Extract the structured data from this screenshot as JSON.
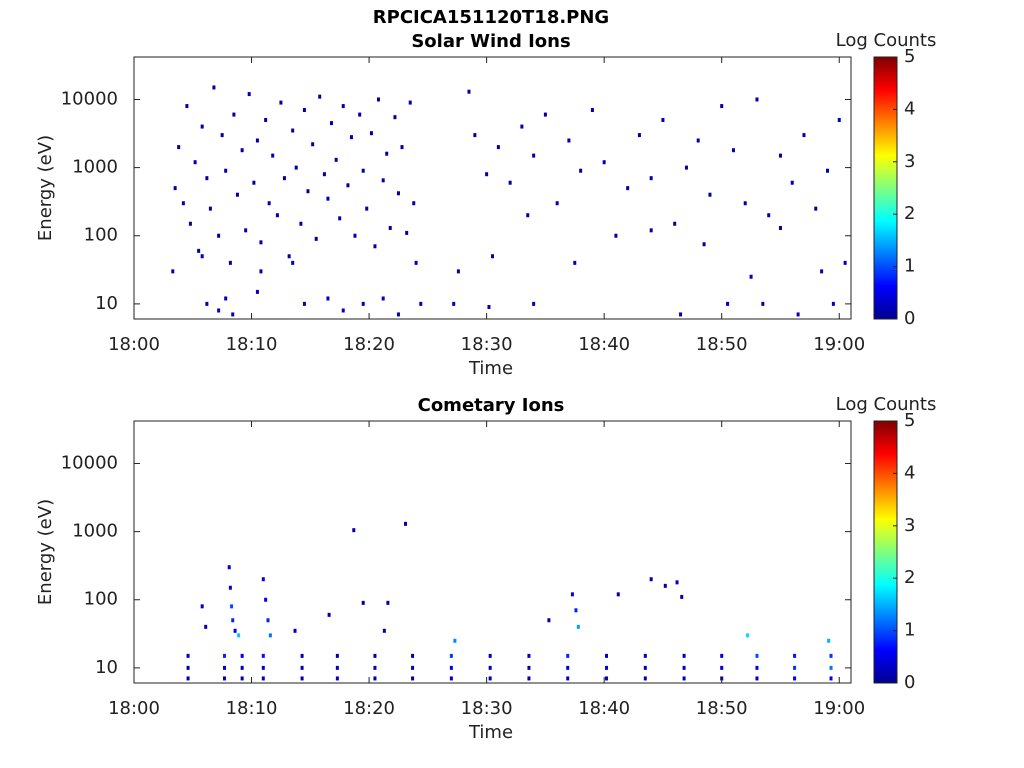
{
  "title": "RPCICA151120T18.PNG",
  "chart_data": [
    {
      "type": "heatmap",
      "title": "Solar Wind Ions",
      "xlabel": "Time",
      "ylabel": "Energy (eV)",
      "xlim": [
        0,
        61
      ],
      "xticks": [
        {
          "value": 0,
          "label": "18:00"
        },
        {
          "value": 10,
          "label": "18:10"
        },
        {
          "value": 20,
          "label": "18:20"
        },
        {
          "value": 30,
          "label": "18:30"
        },
        {
          "value": 40,
          "label": "18:40"
        },
        {
          "value": 50,
          "label": "18:50"
        },
        {
          "value": 60,
          "label": "19:00"
        }
      ],
      "ylim": [
        6,
        42000
      ],
      "yticks": [
        10,
        100,
        1000,
        10000
      ],
      "yscale": "log",
      "colorbar": {
        "label": "Log Counts",
        "lim": [
          0,
          5
        ],
        "ticks": [
          0,
          1,
          2,
          3,
          4,
          5
        ],
        "colormap": "jet"
      },
      "x": [
        3.5,
        3.8,
        4.2,
        4.5,
        4.8,
        5.2,
        5.5,
        5.8,
        6.2,
        6.5,
        6.8,
        7.2,
        7.5,
        7.8,
        8.2,
        8.5,
        8.8,
        9.2,
        9.5,
        9.8,
        10.2,
        10.5,
        10.8,
        11.2,
        11.5,
        11.8,
        12.2,
        12.5,
        12.8,
        13.2,
        13.5,
        13.8,
        14.2,
        14.5,
        14.8,
        15.2,
        15.5,
        15.8,
        16.2,
        16.5,
        16.8,
        17.2,
        17.5,
        17.8,
        18.2,
        18.5,
        18.8,
        19.2,
        19.5,
        19.8,
        20.2,
        20.5,
        20.8,
        21.2,
        21.5,
        21.8,
        22.2,
        22.5,
        22.8,
        23.2,
        23.5,
        23.8,
        3.3,
        5.8,
        6.2,
        7.2,
        7.8,
        8.4,
        10.5,
        10.8,
        13.5,
        14.5,
        16.5,
        17.8,
        19.5,
        21.2,
        22.5,
        24,
        24.4,
        27.2,
        27.6,
        30.2,
        34,
        37.5,
        46.5,
        50.5,
        52.5,
        53.5,
        56.5,
        58.5,
        59.5,
        60.5,
        28.5,
        29,
        30,
        31,
        32,
        33,
        34,
        35,
        36,
        37,
        38,
        39,
        40,
        41,
        42,
        43,
        44,
        45,
        46,
        47,
        48,
        49,
        50,
        51,
        52,
        53,
        54,
        55,
        56,
        57,
        58,
        59,
        60,
        30.5,
        33.5,
        44,
        48.5,
        55
      ],
      "y": [
        500,
        2000,
        300,
        8000,
        150,
        1200,
        60,
        4000,
        700,
        250,
        15000,
        100,
        3000,
        900,
        40,
        6000,
        400,
        1800,
        120,
        12000,
        600,
        2500,
        80,
        5000,
        300,
        1500,
        200,
        9000,
        700,
        50,
        3500,
        1000,
        150,
        7000,
        450,
        2200,
        90,
        11000,
        800,
        350,
        4500,
        1300,
        180,
        8000,
        550,
        2800,
        100,
        6000,
        900,
        250,
        3200,
        70,
        10000,
        650,
        1600,
        130,
        5500,
        420,
        2000,
        110,
        9000,
        300,
        30,
        50,
        10,
        8,
        12,
        7,
        15,
        30,
        40,
        10,
        12,
        8,
        10,
        12,
        7,
        40,
        10,
        10,
        30,
        9,
        10,
        40,
        7,
        10,
        25,
        10,
        7,
        30,
        10,
        40,
        13000,
        3000,
        800,
        2000,
        600,
        4000,
        1500,
        6000,
        300,
        2500,
        900,
        7000,
        1200,
        100,
        500,
        3000,
        700,
        5000,
        150,
        1000,
        2500,
        400,
        8000,
        1800,
        300,
        10000,
        200,
        1500,
        600,
        3000,
        250,
        900,
        5000,
        50,
        200,
        120,
        75,
        130
      ],
      "values": [
        0.2,
        0.2,
        0.2,
        0.2,
        0.2,
        0.2,
        0.2,
        0.2,
        0.2,
        0.2,
        0.2,
        0.2,
        0.2,
        0.2,
        0.2,
        0.2,
        0.2,
        0.2,
        0.2,
        0.2,
        0.2,
        0.2,
        0.2,
        0.2,
        0.2,
        0.2,
        0.2,
        0.2,
        0.2,
        0.2,
        0.2,
        0.2,
        0.2,
        0.2,
        0.2,
        0.2,
        0.2,
        0.2,
        0.2,
        0.2,
        0.2,
        0.2,
        0.2,
        0.2,
        0.2,
        0.2,
        0.2,
        0.2,
        0.2,
        0.2,
        0.2,
        0.2,
        0.2,
        0.2,
        0.2,
        0.2,
        0.2,
        0.2,
        0.2,
        0.2,
        0.2,
        0.2,
        0.3,
        0.3,
        0.3,
        0.3,
        0.3,
        0.3,
        0.3,
        0.3,
        0.3,
        0.3,
        0.3,
        0.3,
        0.3,
        0.3,
        0.3,
        0.3,
        0.3,
        0.3,
        0.3,
        0.3,
        0.3,
        0.3,
        0.3,
        0.3,
        0.3,
        0.3,
        0.3,
        0.3,
        0.3,
        0.3,
        0.2,
        0.2,
        0.2,
        0.2,
        0.2,
        0.2,
        0.2,
        0.2,
        0.2,
        0.2,
        0.2,
        0.2,
        0.2,
        0.2,
        0.2,
        0.2,
        0.2,
        0.2,
        0.2,
        0.2,
        0.2,
        0.2,
        0.2,
        0.2,
        0.2,
        0.2,
        0.2,
        0.2,
        0.2,
        0.2,
        0.2,
        0.2,
        0.2,
        0.2,
        0.2,
        0.2,
        0.2,
        0.2
      ]
    },
    {
      "type": "heatmap",
      "title": "Cometary Ions",
      "xlabel": "Time",
      "ylabel": "Energy (eV)",
      "xlim": [
        0,
        61
      ],
      "xticks": [
        {
          "value": 0,
          "label": "18:00"
        },
        {
          "value": 10,
          "label": "18:10"
        },
        {
          "value": 20,
          "label": "18:20"
        },
        {
          "value": 30,
          "label": "18:30"
        },
        {
          "value": 40,
          "label": "18:40"
        },
        {
          "value": 50,
          "label": "18:50"
        },
        {
          "value": 60,
          "label": "19:00"
        }
      ],
      "ylim": [
        6,
        42000
      ],
      "yticks": [
        10,
        100,
        1000,
        10000
      ],
      "yscale": "log",
      "colorbar": {
        "label": "Log Counts",
        "lim": [
          0,
          5
        ],
        "ticks": [
          0,
          1,
          2,
          3,
          4,
          5
        ],
        "colormap": "jet"
      },
      "x": [
        4.6,
        4.6,
        4.6,
        7.7,
        7.7,
        7.7,
        9.2,
        9.2,
        9.2,
        11,
        11,
        11,
        14.3,
        14.3,
        14.3,
        17.3,
        17.3,
        17.3,
        20.5,
        20.5,
        20.5,
        23.7,
        23.7,
        23.7,
        27,
        27,
        27,
        30.3,
        30.3,
        30.3,
        33.6,
        33.6,
        33.6,
        36.9,
        36.9,
        36.9,
        40.2,
        40.2,
        40.2,
        43.5,
        43.5,
        43.5,
        46.8,
        46.8,
        46.8,
        50,
        50,
        50,
        53,
        53,
        53,
        56.2,
        56.2,
        56.2,
        59.3,
        59.3,
        59.3,
        8.1,
        8.2,
        8.3,
        8.4,
        8.6,
        11,
        11.2,
        11.4,
        11.6,
        37.3,
        37.6,
        37.8,
        5.8,
        6.1,
        13.7,
        16.6,
        18.7,
        19.5,
        21.3,
        21.6,
        23.1,
        35.3,
        41.2,
        44,
        45.2,
        46.2,
        46.6,
        52.2,
        59.1,
        27.3,
        8.9
      ],
      "y": [
        7,
        10,
        15,
        7,
        10,
        15,
        7,
        10,
        15,
        7,
        10,
        15,
        7,
        10,
        15,
        7,
        10,
        15,
        7,
        10,
        15,
        7,
        10,
        15,
        7,
        10,
        15,
        7,
        10,
        15,
        7,
        10,
        15,
        7,
        10,
        15,
        7,
        10,
        15,
        7,
        10,
        15,
        7,
        10,
        15,
        7,
        10,
        15,
        7,
        10,
        15,
        7,
        10,
        15,
        7,
        10,
        15,
        300,
        150,
        80,
        50,
        35,
        200,
        100,
        50,
        30,
        120,
        70,
        40,
        80,
        40,
        35,
        60,
        1050,
        90,
        35,
        90,
        1300,
        50,
        120,
        200,
        160,
        180,
        110,
        30,
        25,
        25,
        30
      ],
      "values": [
        0.2,
        0.2,
        0.3,
        0.3,
        0.5,
        0.8,
        0.2,
        0.3,
        0.6,
        0.3,
        0.4,
        0.7,
        0.2,
        0.3,
        0.3,
        0.3,
        0.3,
        0.2,
        0.2,
        0.3,
        0.2,
        0.2,
        0.3,
        0.2,
        0.3,
        0.6,
        0.9,
        0.2,
        0.3,
        0.3,
        0.2,
        0.2,
        0.3,
        0.3,
        0.5,
        0.8,
        0.3,
        0.6,
        0.4,
        0.2,
        0.3,
        0.3,
        0.3,
        0.4,
        0.3,
        0.3,
        0.4,
        0.5,
        0.3,
        0.6,
        1,
        0.6,
        0.9,
        0.7,
        0.5,
        1.2,
        0.9,
        0.4,
        0.6,
        1,
        0.8,
        0.5,
        0.4,
        0.6,
        0.8,
        1.2,
        0.5,
        0.8,
        1.4,
        0.3,
        0.3,
        0.3,
        0.2,
        0.2,
        0.2,
        0.2,
        0.2,
        0.2,
        0.2,
        0.2,
        0.2,
        0.2,
        0.3,
        0.3,
        1.7,
        1.5,
        1.3,
        1.6
      ]
    }
  ]
}
